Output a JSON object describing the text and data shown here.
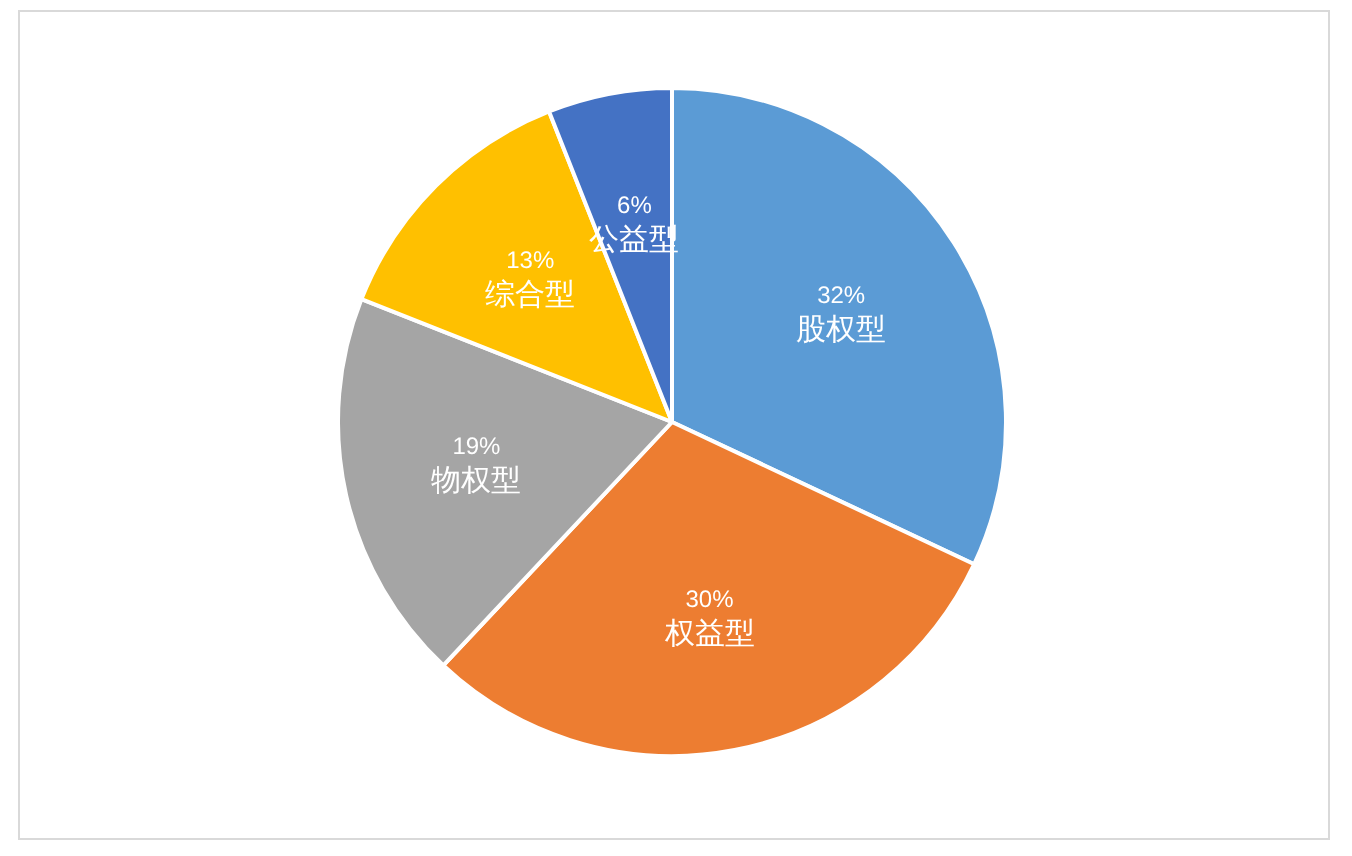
{
  "chart_data": {
    "type": "pie",
    "categories": [
      "股权型",
      "权益型",
      "物权型",
      "综合型",
      "公益型"
    ],
    "values": [
      32,
      30,
      19,
      13,
      6
    ],
    "colors": [
      "#5b9bd5",
      "#ed7d31",
      "#a5a5a5",
      "#ffc000",
      "#4472c4"
    ],
    "value_labels": [
      "32%",
      "30%",
      "19%",
      "13%",
      "6%"
    ]
  }
}
